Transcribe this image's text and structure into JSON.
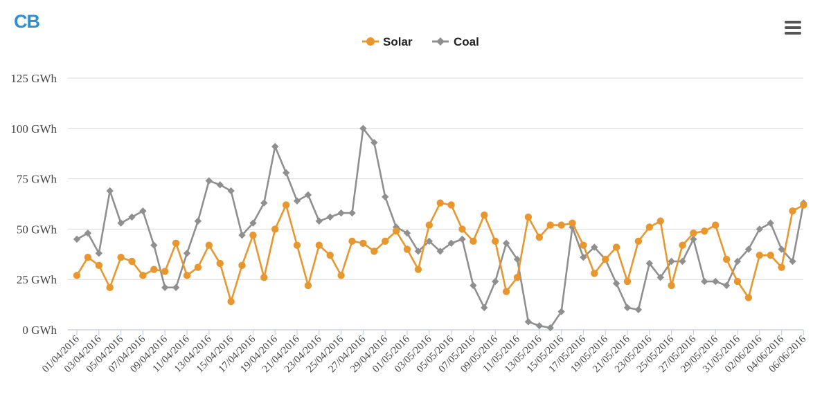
{
  "logo": {
    "text": "CB",
    "color": "#2a8fd6"
  },
  "menu": {
    "icon": "hamburger-menu-icon"
  },
  "colors": {
    "solar": "#e8962e",
    "coal": "#8f8f8f",
    "grid": "#d9d9d9",
    "axis": "#c6d2e6"
  },
  "chart_data": {
    "type": "line",
    "title": "",
    "xlabel": "",
    "ylabel": "",
    "ylim": [
      0,
      125
    ],
    "y_ticks": [
      {
        "value": 0,
        "label": "0 GWh"
      },
      {
        "value": 25,
        "label": "25 GWh"
      },
      {
        "value": 50,
        "label": "50 GWh"
      },
      {
        "value": 75,
        "label": "75 GWh"
      },
      {
        "value": 100,
        "label": "100 GWh"
      },
      {
        "value": 125,
        "label": "125 GWh"
      }
    ],
    "grid": true,
    "legend_position": "top-center",
    "x_labels": [
      "01/04/2016",
      "03/04/2016",
      "05/04/2016",
      "07/04/2016",
      "09/04/2016",
      "11/04/2016",
      "13/04/2016",
      "15/04/2016",
      "17/04/2016",
      "19/04/2016",
      "21/04/2016",
      "23/04/2016",
      "25/04/2016",
      "27/04/2016",
      "29/04/2016",
      "01/05/2016",
      "03/05/2016",
      "05/05/2016",
      "07/05/2016",
      "09/05/2016",
      "11/05/2016",
      "13/05/2016",
      "15/05/2016",
      "17/05/2016",
      "19/05/2016",
      "21/05/2016",
      "23/05/2016",
      "25/05/2016",
      "27/05/2016",
      "29/05/2016",
      "31/05/2016",
      "02/06/2016",
      "04/06/2016",
      "06/06/2016"
    ],
    "x_label_interval": 2,
    "series": [
      {
        "name": "Solar",
        "marker": "circle",
        "values": [
          27,
          36,
          32,
          21,
          36,
          34,
          27,
          30,
          29,
          43,
          27,
          31,
          42,
          33,
          14,
          32,
          47,
          26,
          50,
          62,
          42,
          22,
          42,
          37,
          27,
          44,
          43,
          39,
          44,
          49,
          40,
          30,
          52,
          63,
          62,
          50,
          44,
          57,
          44,
          19,
          26,
          56,
          46,
          52,
          52,
          53,
          42,
          28,
          35,
          41,
          24,
          44,
          51,
          54,
          22,
          42,
          48,
          49,
          52,
          35,
          24,
          16,
          37,
          37,
          31,
          59,
          62
        ]
      },
      {
        "name": "Coal",
        "marker": "diamond",
        "values": [
          45,
          48,
          38,
          69,
          53,
          56,
          59,
          42,
          21,
          21,
          38,
          54,
          74,
          72,
          69,
          47,
          53,
          63,
          91,
          78,
          64,
          67,
          54,
          56,
          58,
          58,
          100,
          93,
          66,
          51,
          48,
          39,
          44,
          39,
          43,
          45,
          22,
          11,
          24,
          43,
          35,
          4,
          2,
          1,
          9,
          51,
          36,
          41,
          35,
          23,
          11,
          10,
          33,
          26,
          34,
          34,
          45,
          24,
          24,
          22,
          34,
          40,
          50,
          53,
          40,
          34,
          63
        ]
      }
    ]
  }
}
